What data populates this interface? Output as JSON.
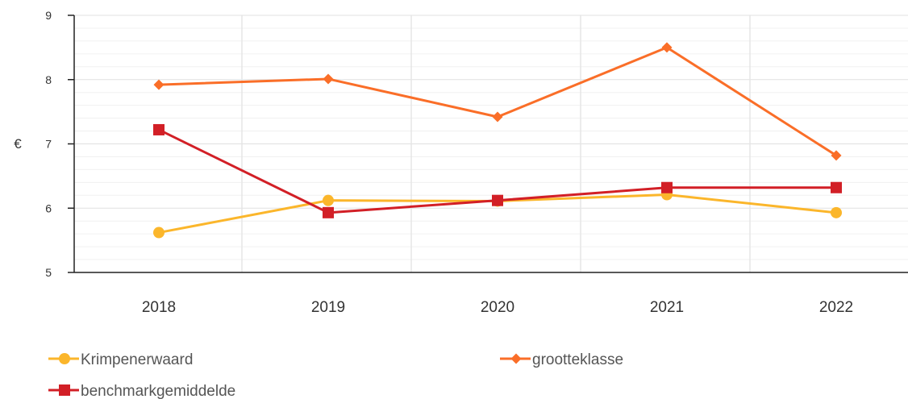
{
  "chart_data": {
    "type": "line",
    "title": "",
    "xlabel": "",
    "ylabel": "€",
    "categories": [
      "2018",
      "2019",
      "2020",
      "2021",
      "2022"
    ],
    "ylim": [
      5,
      9
    ],
    "yticks": [
      "5",
      "6",
      "7",
      "8",
      "9"
    ],
    "grid": true,
    "legend_position": "bottom",
    "series": [
      {
        "name": "Krimpenerwaard",
        "values": [
          5.62,
          6.12,
          6.11,
          6.21,
          5.93
        ],
        "color": "#fbb62b",
        "marker": "circle"
      },
      {
        "name": "grootteklasse",
        "values": [
          7.92,
          8.01,
          7.42,
          8.5,
          6.82
        ],
        "color": "#fa6e28",
        "marker": "diamond"
      },
      {
        "name": "benchmarkgemiddelde",
        "values": [
          7.22,
          5.93,
          6.12,
          6.32,
          6.32
        ],
        "color": "#d21f26",
        "marker": "square"
      }
    ]
  }
}
